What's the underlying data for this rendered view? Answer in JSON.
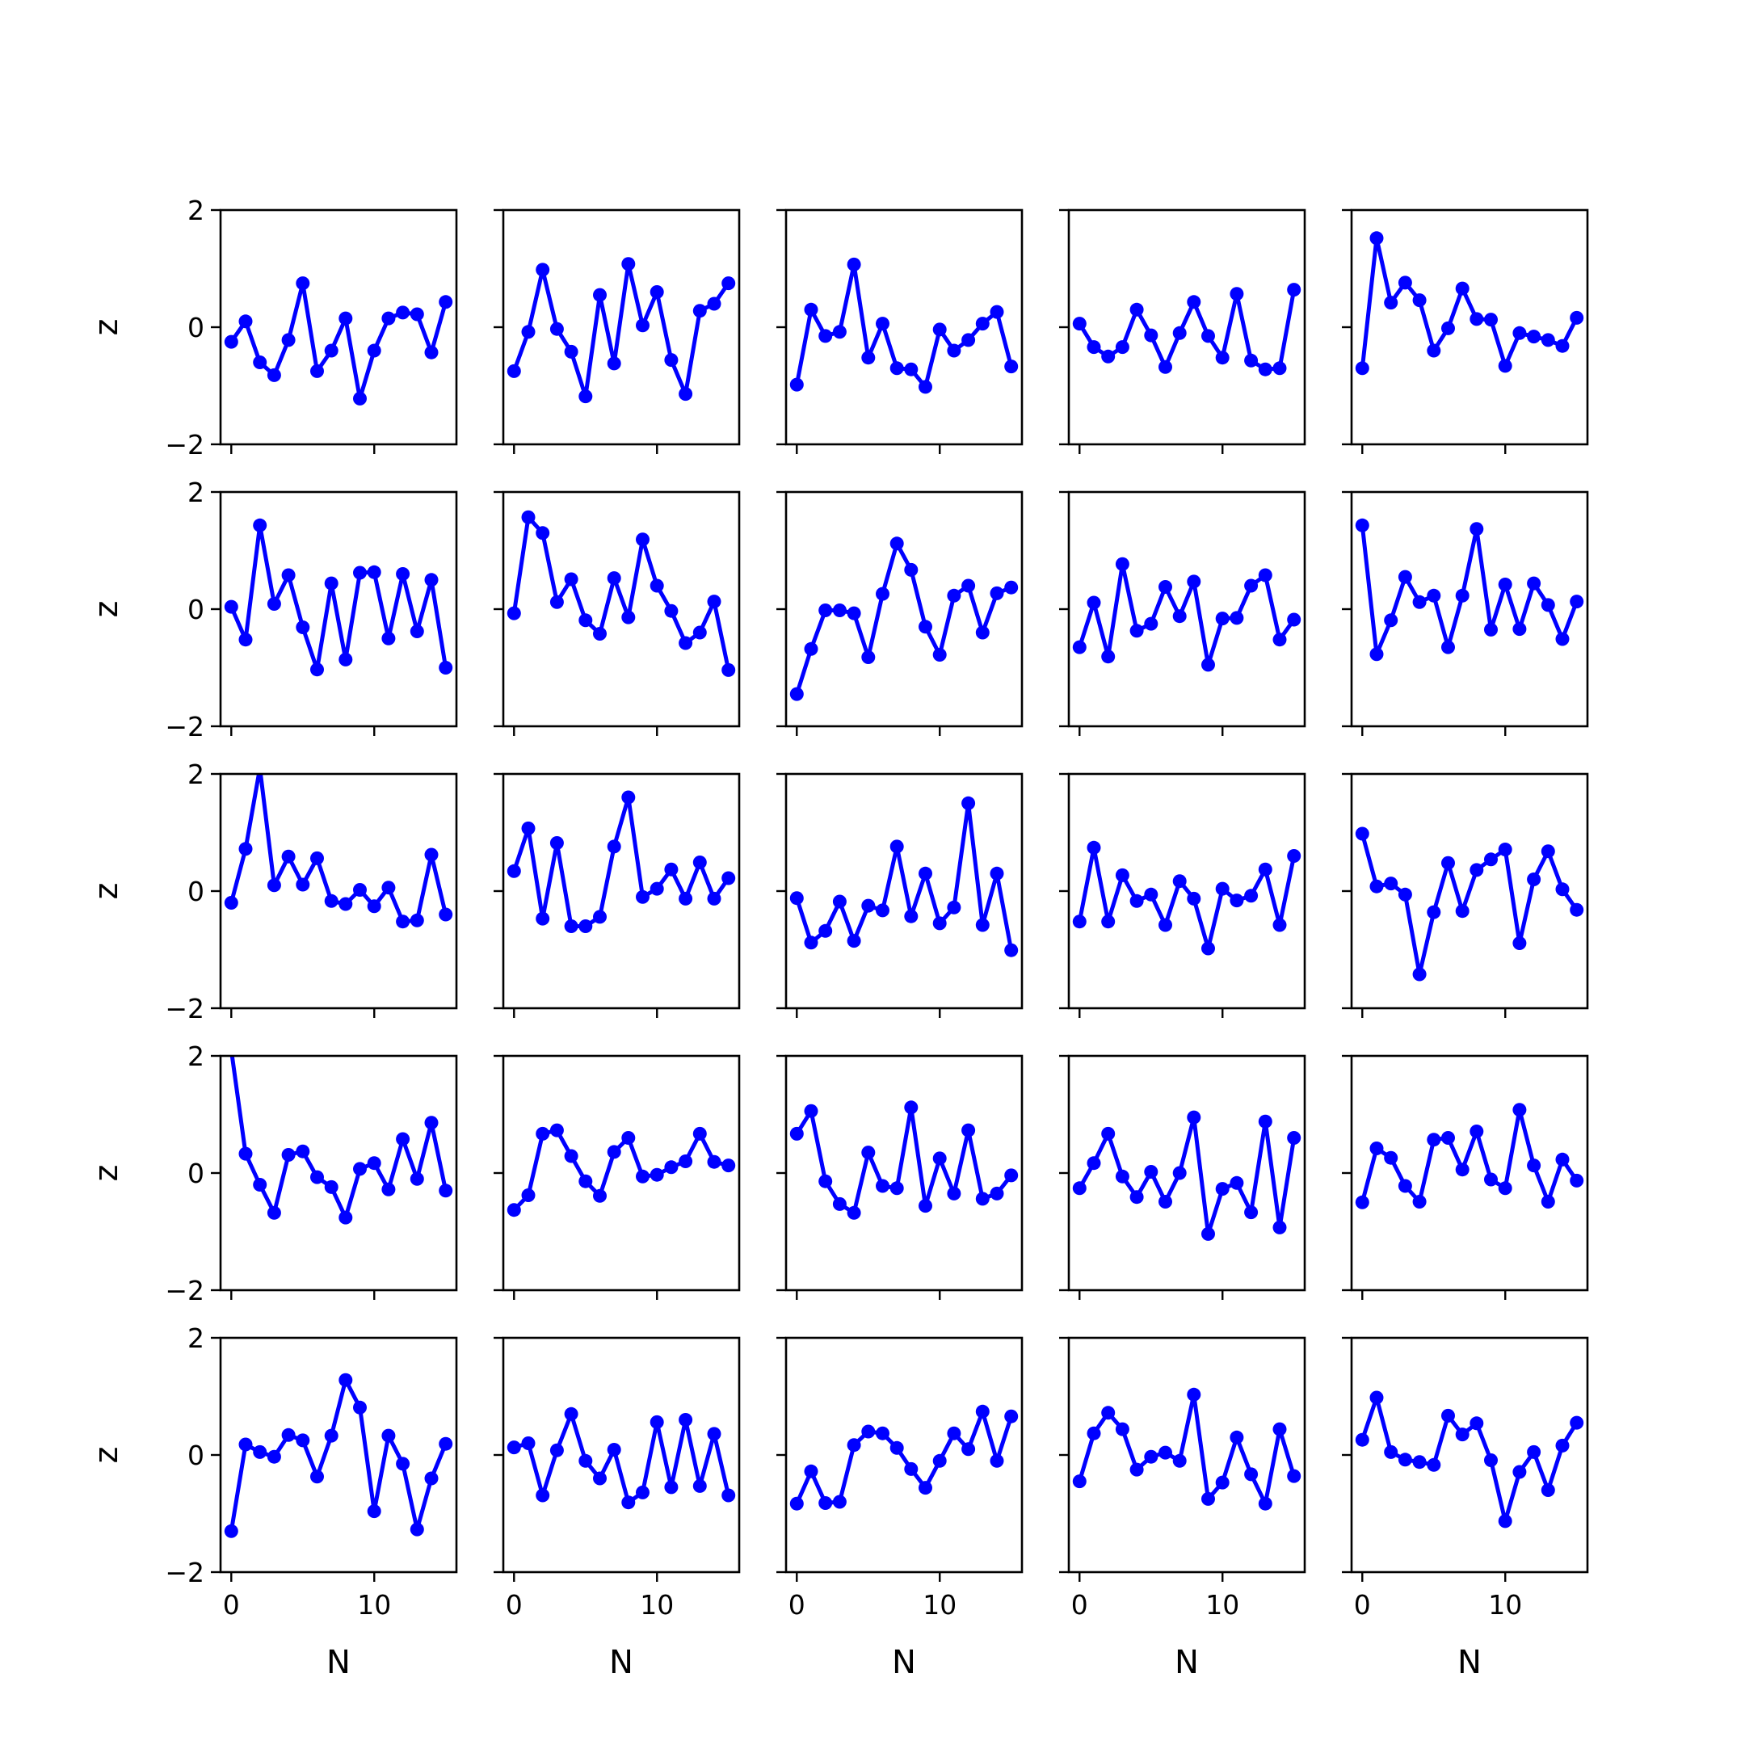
{
  "chart_data": {
    "type": "line",
    "layout": "5x5 grid of small multiples with shared x and y axes",
    "line_color": "#0000ff",
    "marker": "circle",
    "xlabel": "N",
    "ylabel": "z",
    "xlim": [
      -0.75,
      15.75
    ],
    "ylim": [
      -2,
      2
    ],
    "xticks": [
      0,
      10
    ],
    "xtick_labels": [
      "0",
      "10"
    ],
    "yticks": [
      -2,
      0,
      2
    ],
    "ytick_labels": [
      "−2",
      "0",
      "2"
    ],
    "grid": false,
    "x": [
      0,
      1,
      2,
      3,
      4,
      5,
      6,
      7,
      8,
      9,
      10,
      11,
      12,
      13,
      14,
      15
    ],
    "panels": [
      {
        "row": 0,
        "col": 0,
        "values": [
          -0.25,
          0.1,
          -0.6,
          -0.82,
          -0.22,
          0.75,
          -0.75,
          -0.4,
          0.15,
          -1.22,
          -0.4,
          0.15,
          0.25,
          0.22,
          -0.43,
          0.43
        ]
      },
      {
        "row": 0,
        "col": 1,
        "values": [
          -0.75,
          -0.08,
          0.98,
          -0.03,
          -0.42,
          -1.18,
          0.55,
          -0.62,
          1.08,
          0.03,
          0.6,
          -0.56,
          -1.14,
          0.28,
          0.4,
          0.75
        ]
      },
      {
        "row": 0,
        "col": 2,
        "values": [
          -0.98,
          0.3,
          -0.15,
          -0.08,
          1.07,
          -0.52,
          0.06,
          -0.7,
          -0.72,
          -1.02,
          -0.04,
          -0.4,
          -0.22,
          0.06,
          0.26,
          -0.67
        ]
      },
      {
        "row": 0,
        "col": 3,
        "values": [
          0.06,
          -0.34,
          -0.5,
          -0.34,
          0.3,
          -0.14,
          -0.68,
          -0.1,
          0.43,
          -0.15,
          -0.52,
          0.57,
          -0.57,
          -0.72,
          -0.7,
          0.64
        ]
      },
      {
        "row": 0,
        "col": 4,
        "values": [
          -0.7,
          1.52,
          0.42,
          0.76,
          0.46,
          -0.4,
          -0.02,
          0.66,
          0.14,
          0.13,
          -0.66,
          -0.1,
          -0.16,
          -0.22,
          -0.32,
          0.16
        ]
      },
      {
        "row": 1,
        "col": 0,
        "values": [
          0.04,
          -0.52,
          1.43,
          0.09,
          0.58,
          -0.31,
          -1.03,
          0.44,
          -0.86,
          0.62,
          0.63,
          -0.5,
          0.6,
          -0.38,
          0.5,
          -1.0
        ]
      },
      {
        "row": 1,
        "col": 1,
        "values": [
          -0.07,
          1.57,
          1.3,
          0.12,
          0.51,
          -0.19,
          -0.42,
          0.53,
          -0.14,
          1.19,
          0.4,
          -0.03,
          -0.58,
          -0.4,
          0.13,
          -1.04
        ]
      },
      {
        "row": 1,
        "col": 2,
        "values": [
          -1.45,
          -0.68,
          -0.02,
          -0.02,
          -0.07,
          -0.82,
          0.26,
          1.12,
          0.67,
          -0.3,
          -0.78,
          0.23,
          0.4,
          -0.4,
          0.27,
          0.37
        ]
      },
      {
        "row": 1,
        "col": 3,
        "values": [
          -0.65,
          0.11,
          -0.81,
          0.77,
          -0.37,
          -0.25,
          0.38,
          -0.12,
          0.47,
          -0.95,
          -0.16,
          -0.15,
          0.4,
          0.58,
          -0.52,
          -0.18
        ]
      },
      {
        "row": 1,
        "col": 4,
        "values": [
          1.43,
          -0.77,
          -0.19,
          0.55,
          0.12,
          0.23,
          -0.65,
          0.23,
          1.37,
          -0.35,
          0.42,
          -0.34,
          0.44,
          0.07,
          -0.51,
          0.13
        ]
      },
      {
        "row": 2,
        "col": 0,
        "values": [
          -0.2,
          0.72,
          2.1,
          0.1,
          0.59,
          0.11,
          0.56,
          -0.17,
          -0.22,
          0.02,
          -0.26,
          0.06,
          -0.52,
          -0.5,
          0.62,
          -0.4
        ]
      },
      {
        "row": 2,
        "col": 1,
        "values": [
          0.34,
          1.07,
          -0.47,
          0.82,
          -0.6,
          -0.6,
          -0.44,
          0.76,
          1.6,
          -0.1,
          0.04,
          0.37,
          -0.13,
          0.49,
          -0.13,
          0.22
        ]
      },
      {
        "row": 2,
        "col": 2,
        "values": [
          -0.12,
          -0.88,
          -0.68,
          -0.18,
          -0.85,
          -0.25,
          -0.33,
          0.76,
          -0.43,
          0.3,
          -0.55,
          -0.28,
          1.5,
          -0.58,
          0.3,
          -1.01
        ]
      },
      {
        "row": 2,
        "col": 3,
        "values": [
          -0.52,
          0.74,
          -0.52,
          0.27,
          -0.17,
          -0.06,
          -0.58,
          0.17,
          -0.13,
          -0.98,
          0.04,
          -0.16,
          -0.08,
          0.37,
          -0.58,
          0.6
        ]
      },
      {
        "row": 2,
        "col": 4,
        "values": [
          0.98,
          0.08,
          0.13,
          -0.06,
          -1.42,
          -0.36,
          0.48,
          -0.34,
          0.36,
          0.54,
          0.71,
          -0.89,
          0.2,
          0.68,
          0.03,
          -0.32
        ]
      },
      {
        "row": 3,
        "col": 0,
        "values": [
          2.1,
          0.33,
          -0.2,
          -0.68,
          0.31,
          0.37,
          -0.07,
          -0.24,
          -0.76,
          0.07,
          0.17,
          -0.28,
          0.58,
          -0.1,
          0.86,
          -0.3
        ]
      },
      {
        "row": 3,
        "col": 1,
        "values": [
          -0.63,
          -0.38,
          0.67,
          0.73,
          0.29,
          -0.14,
          -0.39,
          0.36,
          0.6,
          -0.06,
          -0.03,
          0.1,
          0.2,
          0.67,
          0.19,
          0.13
        ]
      },
      {
        "row": 3,
        "col": 2,
        "values": [
          0.67,
          1.06,
          -0.14,
          -0.53,
          -0.68,
          0.35,
          -0.22,
          -0.26,
          1.12,
          -0.56,
          0.25,
          -0.35,
          0.73,
          -0.44,
          -0.35,
          -0.04
        ]
      },
      {
        "row": 3,
        "col": 3,
        "values": [
          -0.26,
          0.17,
          0.67,
          -0.06,
          -0.41,
          0.02,
          -0.49,
          0.0,
          0.95,
          -1.04,
          -0.27,
          -0.17,
          -0.67,
          0.88,
          -0.93,
          0.6
        ]
      },
      {
        "row": 3,
        "col": 4,
        "values": [
          -0.5,
          0.42,
          0.26,
          -0.22,
          -0.49,
          0.57,
          0.6,
          0.06,
          0.71,
          -0.11,
          -0.26,
          1.08,
          0.13,
          -0.49,
          0.23,
          -0.13
        ]
      },
      {
        "row": 4,
        "col": 0,
        "values": [
          -1.3,
          0.18,
          0.05,
          -0.03,
          0.34,
          0.25,
          -0.37,
          0.33,
          1.28,
          0.81,
          -0.96,
          0.33,
          -0.15,
          -1.27,
          -0.4,
          0.19
        ]
      },
      {
        "row": 4,
        "col": 1,
        "values": [
          0.13,
          0.2,
          -0.69,
          0.08,
          0.7,
          -0.1,
          -0.4,
          0.09,
          -0.81,
          -0.64,
          0.56,
          -0.55,
          0.6,
          -0.53,
          0.36,
          -0.69
        ]
      },
      {
        "row": 4,
        "col": 2,
        "values": [
          -0.83,
          -0.28,
          -0.82,
          -0.8,
          0.17,
          0.4,
          0.37,
          0.12,
          -0.24,
          -0.56,
          -0.1,
          0.37,
          0.1,
          0.74,
          -0.1,
          0.66
        ]
      },
      {
        "row": 4,
        "col": 3,
        "values": [
          -0.45,
          0.37,
          0.72,
          0.44,
          -0.25,
          -0.03,
          0.04,
          -0.1,
          1.03,
          -0.75,
          -0.47,
          0.3,
          -0.33,
          -0.83,
          0.44,
          -0.36
        ]
      },
      {
        "row": 4,
        "col": 4,
        "values": [
          0.26,
          0.98,
          0.05,
          -0.08,
          -0.12,
          -0.17,
          0.67,
          0.35,
          0.54,
          -0.09,
          -1.13,
          -0.29,
          0.05,
          -0.6,
          0.16,
          0.55
        ]
      }
    ]
  }
}
